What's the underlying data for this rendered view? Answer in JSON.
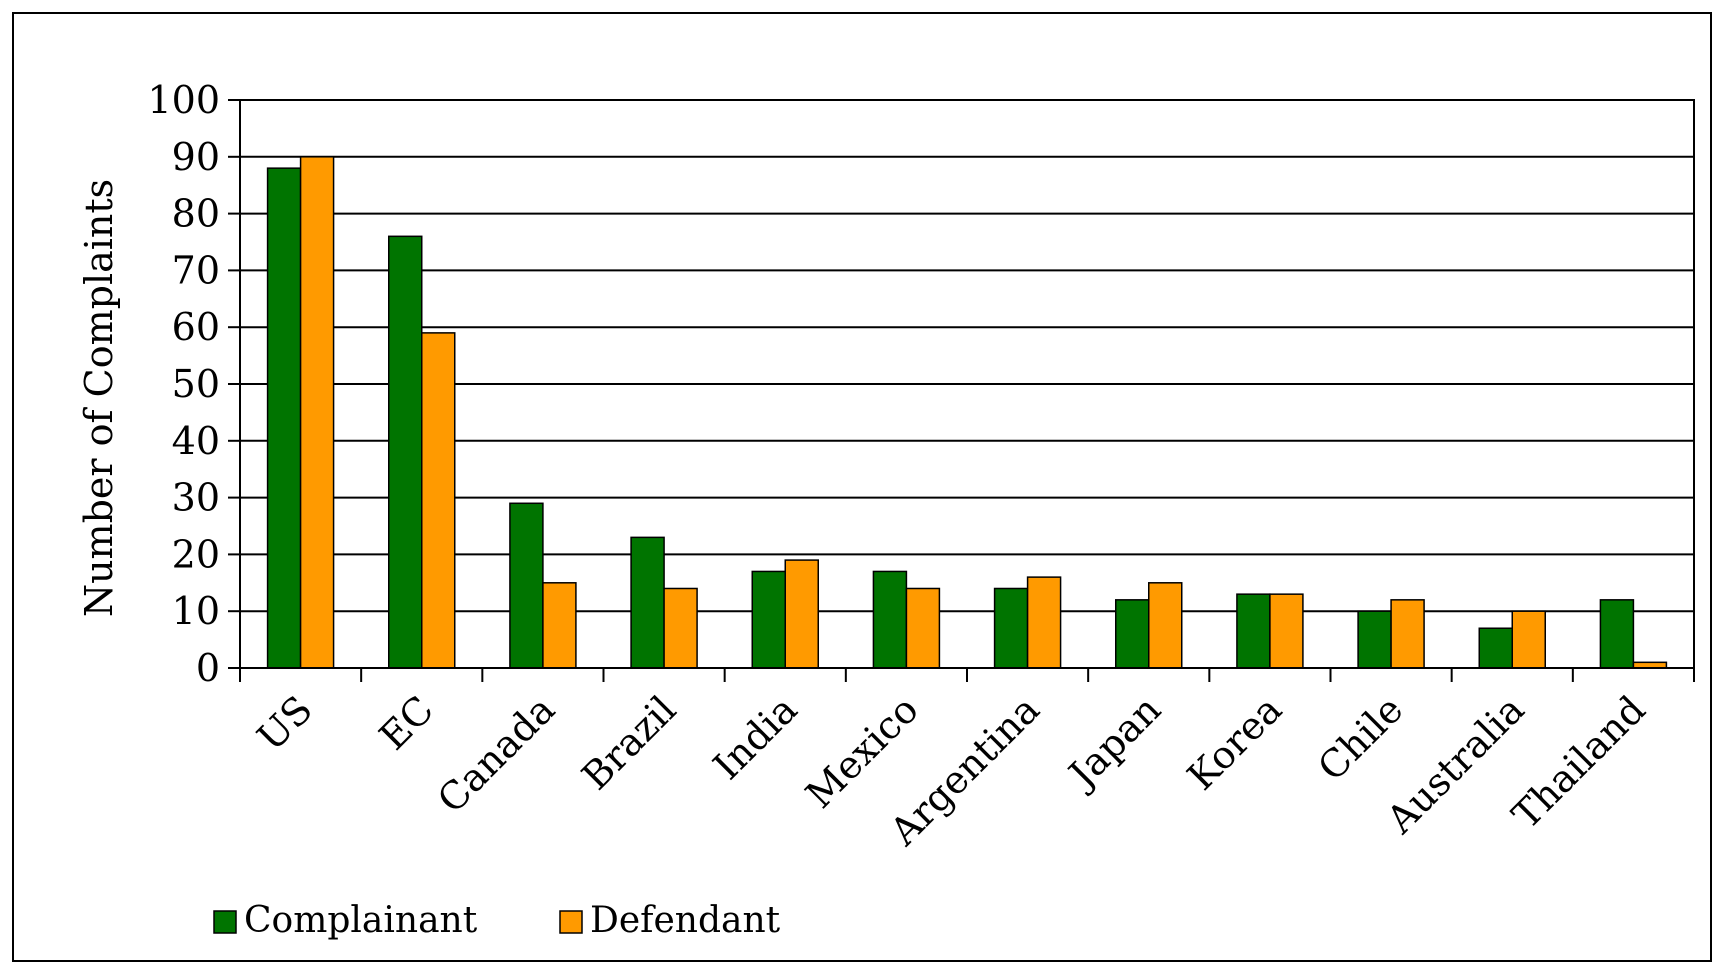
{
  "chart_data": {
    "type": "bar",
    "title": "",
    "xlabel": "",
    "ylabel": "Number of Complaints",
    "ylim": [
      0,
      100
    ],
    "yticks": [
      "0",
      "10",
      "20",
      "30",
      "40",
      "50",
      "60",
      "70",
      "80",
      "90",
      "100"
    ],
    "grid": true,
    "legend_position": "bottom-left",
    "categories": [
      "US",
      "EC",
      "Canada",
      "Brazil",
      "India",
      "Mexico",
      "Argentina",
      "Japan",
      "Korea",
      "Chile",
      "Australia",
      "Thailand"
    ],
    "series": [
      {
        "name": "Complainant",
        "color": "#007400",
        "values": [
          88,
          76,
          29,
          23,
          17,
          17,
          14,
          12,
          13,
          10,
          7,
          12
        ]
      },
      {
        "name": "Defendant",
        "color": "#FF9A00",
        "values": [
          90,
          59,
          15,
          14,
          19,
          14,
          16,
          15,
          13,
          12,
          10,
          1
        ]
      }
    ]
  }
}
